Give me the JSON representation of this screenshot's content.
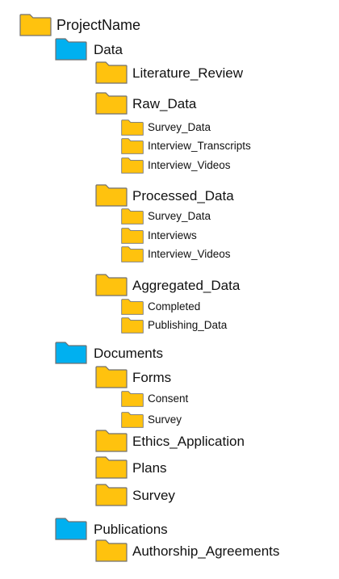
{
  "colors": {
    "folder_yellow": "#FFC20E",
    "folder_blue": "#00B0F0",
    "outline": "#707070"
  },
  "tree": {
    "label": "ProjectName",
    "icon": "folder-icon",
    "color": "yellow",
    "children": [
      {
        "label": "Data",
        "icon": "folder-icon",
        "color": "blue",
        "children": [
          {
            "label": "Literature_Review",
            "icon": "folder-icon",
            "color": "yellow"
          },
          {
            "label": "Raw_Data",
            "icon": "folder-icon",
            "color": "yellow",
            "children": [
              {
                "label": "Survey_Data",
                "icon": "folder-icon",
                "color": "yellow"
              },
              {
                "label": "Interview_Transcripts",
                "icon": "folder-icon",
                "color": "yellow"
              },
              {
                "label": "Interview_Videos",
                "icon": "folder-icon",
                "color": "yellow"
              }
            ]
          },
          {
            "label": "Processed_Data",
            "icon": "folder-icon",
            "color": "yellow",
            "children": [
              {
                "label": "Survey_Data",
                "icon": "folder-icon",
                "color": "yellow"
              },
              {
                "label": "Interviews",
                "icon": "folder-icon",
                "color": "yellow"
              },
              {
                "label": "Interview_Videos",
                "icon": "folder-icon",
                "color": "yellow"
              }
            ]
          },
          {
            "label": "Aggregated_Data",
            "icon": "folder-icon",
            "color": "yellow",
            "children": [
              {
                "label": "Completed",
                "icon": "folder-icon",
                "color": "yellow"
              },
              {
                "label": "Publishing_Data",
                "icon": "folder-icon",
                "color": "yellow"
              }
            ]
          }
        ]
      },
      {
        "label": "Documents",
        "icon": "folder-icon",
        "color": "blue",
        "children": [
          {
            "label": "Forms",
            "icon": "folder-icon",
            "color": "yellow",
            "children": [
              {
                "label": "Consent",
                "icon": "folder-icon",
                "color": "yellow"
              },
              {
                "label": "Survey",
                "icon": "folder-icon",
                "color": "yellow"
              }
            ]
          },
          {
            "label": "Ethics_Application",
            "icon": "folder-icon",
            "color": "yellow"
          },
          {
            "label": "Plans",
            "icon": "folder-icon",
            "color": "yellow"
          },
          {
            "label": "Survey",
            "icon": "folder-icon",
            "color": "yellow"
          }
        ]
      },
      {
        "label": "Publications",
        "icon": "folder-icon",
        "color": "blue",
        "children": [
          {
            "label": "Authorship_Agreements",
            "icon": "folder-icon",
            "color": "yellow"
          }
        ]
      }
    ]
  }
}
